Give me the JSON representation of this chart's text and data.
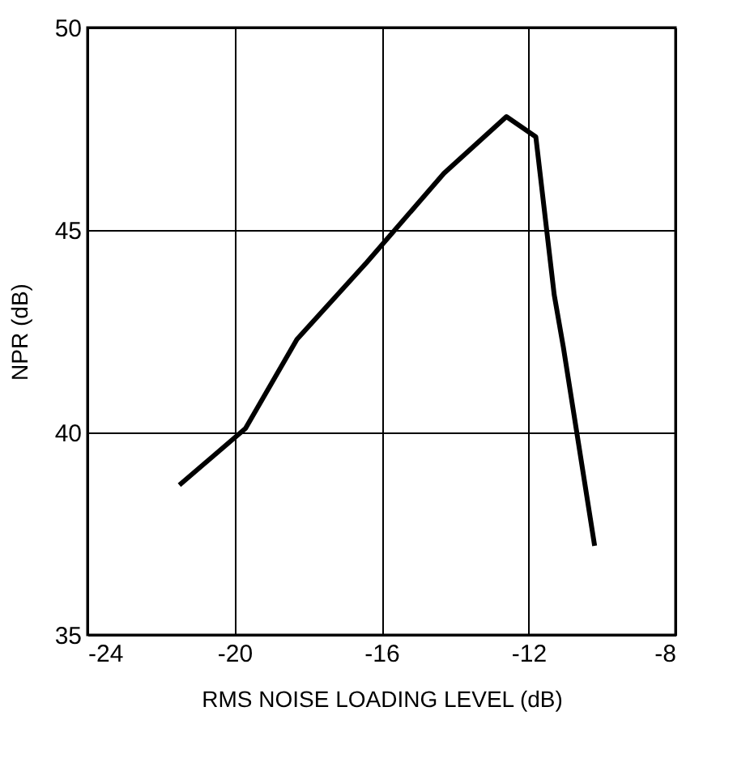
{
  "chart_data": {
    "type": "line",
    "xlabel": "RMS NOISE LOADING LEVEL (dB)",
    "ylabel": "NPR (dB)",
    "x": [
      -21.5,
      -19.7,
      -18.3,
      -16.4,
      -14.3,
      -12.6,
      -11.8,
      -11.3,
      -11.05,
      -10.2
    ],
    "series": [
      {
        "color": "#000000",
        "values": [
          38.7,
          40.1,
          42.3,
          44.2,
          46.4,
          47.8,
          47.3,
          43.4,
          42.1,
          37.2
        ]
      }
    ],
    "xlim": [
      -24,
      -8
    ],
    "xticks": [
      -24,
      -20,
      -16,
      -12,
      -8
    ],
    "ylim": [
      35,
      50
    ],
    "yticks": [
      35,
      40,
      45,
      50
    ],
    "grid": true,
    "line_style": "solid"
  }
}
